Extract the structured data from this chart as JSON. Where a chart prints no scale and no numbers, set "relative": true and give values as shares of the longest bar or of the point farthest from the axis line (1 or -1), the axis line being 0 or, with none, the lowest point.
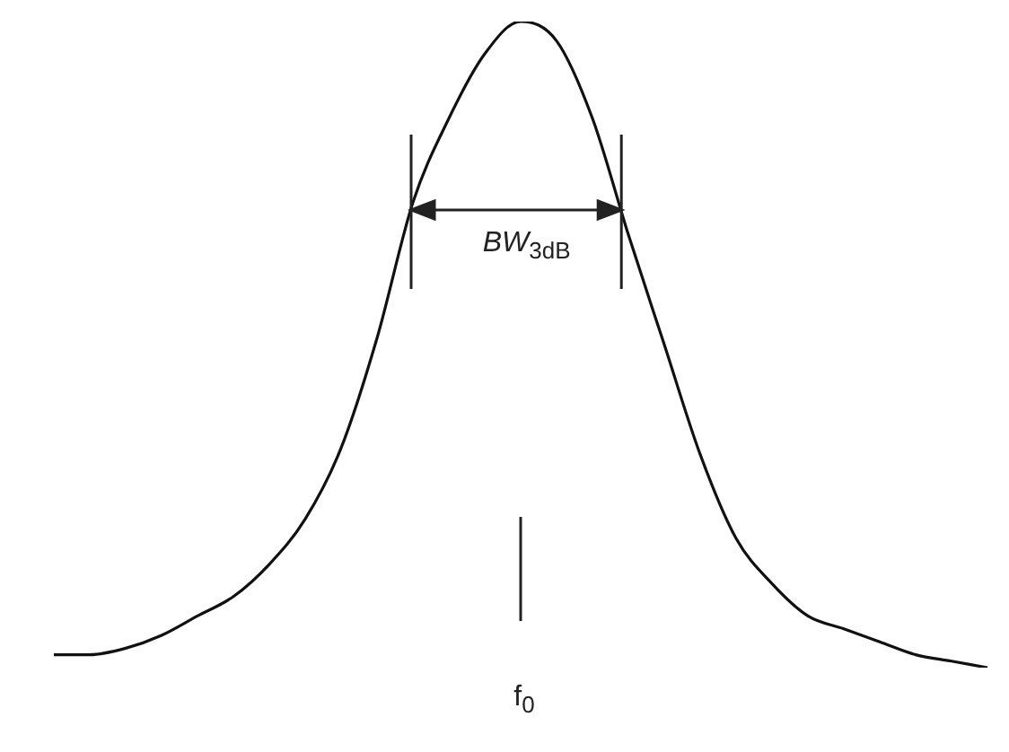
{
  "chart_data": {
    "type": "line",
    "relative": true,
    "categories": [
      null,
      null,
      null,
      null,
      null,
      null,
      null,
      null,
      null,
      null,
      null,
      null,
      null,
      null,
      null,
      null,
      null,
      null,
      null,
      null,
      null,
      null,
      null,
      null,
      null,
      null,
      null
    ],
    "series": [
      {
        "color": "#111111",
        "values": [
          0.02,
          0.02,
          0.03,
          0.05,
          0.08,
          0.11,
          0.16,
          0.23,
          0.34,
          0.51,
          0.72,
          0.85,
          0.95,
          1,
          0.97,
          0.85,
          0.67,
          0.5,
          0.33,
          0.2,
          0.13,
          0.08,
          0.06,
          0.04,
          0.02,
          0.01,
          0
        ]
      }
    ],
    "annotations": [
      "BW$_{3dB}$",
      "f$_{0}$"
    ],
    "legend": false,
    "marker": "none",
    "line_style": "solid"
  }
}
